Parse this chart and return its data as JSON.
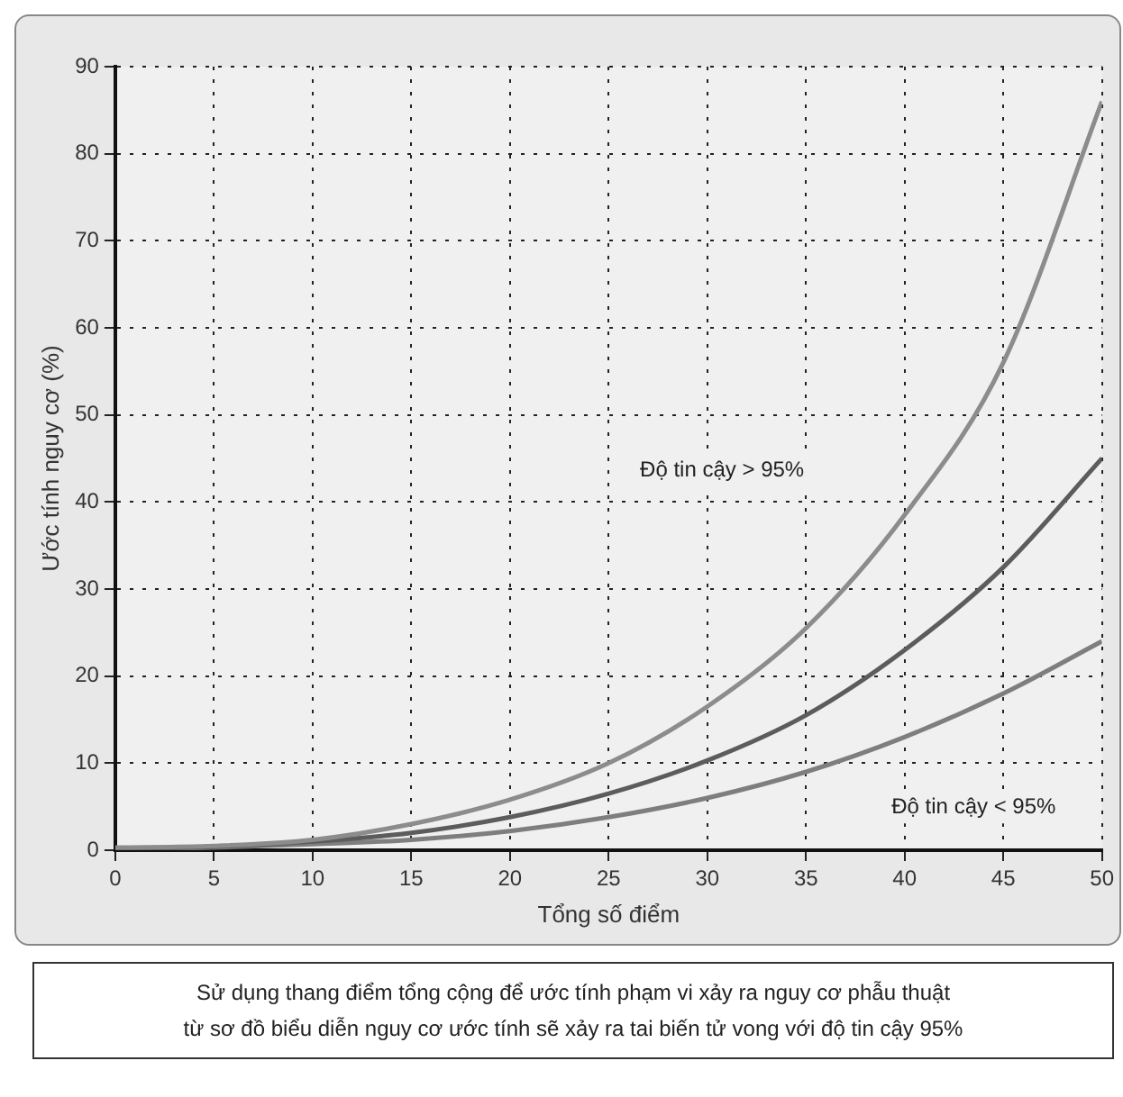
{
  "chart_data": {
    "type": "line",
    "xlabel": "Tổng số điểm",
    "ylabel": "Ước tính nguy cơ (%)",
    "x": [
      0,
      5,
      10,
      15,
      20,
      25,
      30,
      35,
      40,
      45,
      50
    ],
    "series": [
      {
        "color": "#8c8c8c",
        "values": [
          0.3,
          0.5,
          1.2,
          3,
          5.8,
          10,
          16.5,
          25.5,
          38.5,
          56,
          86
        ]
      },
      {
        "color": "#5c5c5c",
        "values": [
          0.2,
          0.4,
          1,
          2,
          3.8,
          6.5,
          10.3,
          15.5,
          23,
          32.5,
          45
        ]
      },
      {
        "color": "#7e7e7e",
        "values": [
          0.1,
          0.3,
          0.7,
          1.2,
          2.2,
          3.8,
          6,
          9,
          13,
          18,
          24
        ]
      }
    ],
    "xlim": [
      0,
      50
    ],
    "xticks": [
      0,
      5,
      10,
      15,
      20,
      25,
      30,
      35,
      40,
      45,
      50
    ],
    "ylim": [
      0,
      90
    ],
    "yticks": [
      0,
      10,
      20,
      30,
      40,
      50,
      60,
      70,
      80,
      90
    ],
    "grid": true,
    "legend": false,
    "marker": "none",
    "line_style": "solid",
    "annotations": [
      "Độ tin cậy > 95%",
      "Độ tin cậy < 95%",
      "Sử dụng thang điểm tổng cộng để ước tính phạm vi xảy ra nguy cơ phẫu thuật\ntừ sơ đồ biểu diễn nguy cơ ước tính sẽ xảy ra tai biến tử vong với độ tin cậy 95%"
    ]
  }
}
